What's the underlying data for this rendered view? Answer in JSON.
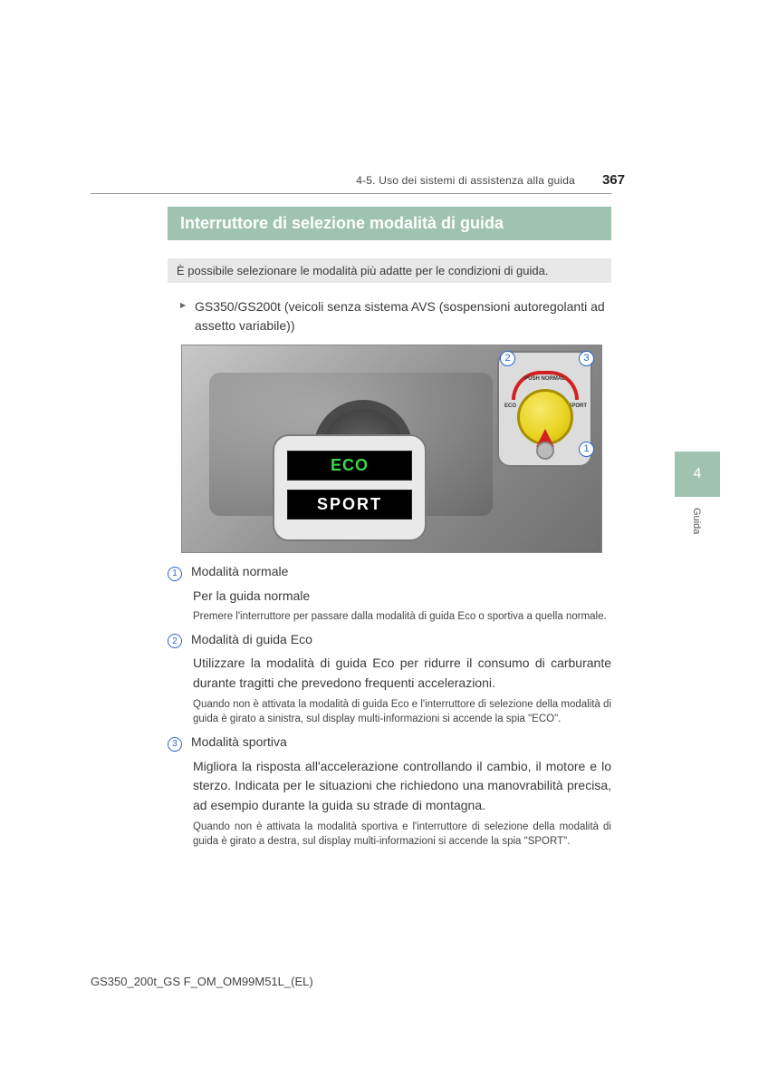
{
  "header": {
    "section": "4-5. Uso dei sistemi di assistenza alla guida",
    "page_number": "367"
  },
  "title": "Interruttore di selezione modalità di guida",
  "intro_text": "È possibile selezionare le modalità più adatte per le condizioni di guida.",
  "vehicle_line": "GS350/GS200t (veicoli senza sistema AVS (sospensioni autoregolanti ad assetto variabile))",
  "figure": {
    "eco_label": "ECO",
    "sport_label": "SPORT",
    "dial": {
      "push_normal": "PUSH NORMAL",
      "eco": "ECO",
      "sport": "SPORT"
    },
    "badges": {
      "n1": "1",
      "n2": "2",
      "n3": "3"
    },
    "image_code": "IN45GS365a"
  },
  "modes": [
    {
      "num": "1",
      "title": "Modalità normale",
      "body": "Per la guida normale",
      "note": "Premere l'interruttore per passare dalla modalità di guida Eco o sportiva a quella normale."
    },
    {
      "num": "2",
      "title": "Modalità di guida Eco",
      "body": "Utilizzare la modalità di guida Eco per ridurre il consumo di carburante durante tragitti che prevedono frequenti accelerazioni.",
      "note": "Quando non è attivata la modalità di guida Eco e l'interruttore di selezione della modalità di guida è girato a sinistra, sul display multi-informazioni si accende la spia \"ECO\"."
    },
    {
      "num": "3",
      "title": "Modalità sportiva",
      "body": "Migliora la risposta all'accelerazione controllando il cambio, il motore e lo sterzo. Indicata per le situazioni che richiedono una manovrabilità precisa, ad esempio durante la guida su strade di montagna.",
      "note": "Quando non è attivata la modalità sportiva e l'interruttore di selezione della modalità di guida è girato a destra, sul display multi-informazioni si accende la spia \"SPORT\"."
    }
  ],
  "side_tab": {
    "chapter": "4",
    "label": "Guida"
  },
  "footer_code": "GS350_200t_GS F_OM_OM99M51L_(EL)",
  "colors": {
    "accent_green": "#9fc3b0",
    "badge_blue": "#2a66c8",
    "arrow_red": "#d32020",
    "eco_text": "#3ad64a",
    "sport_text": "#ffffff",
    "knob_yellow": "#e8d31f"
  }
}
